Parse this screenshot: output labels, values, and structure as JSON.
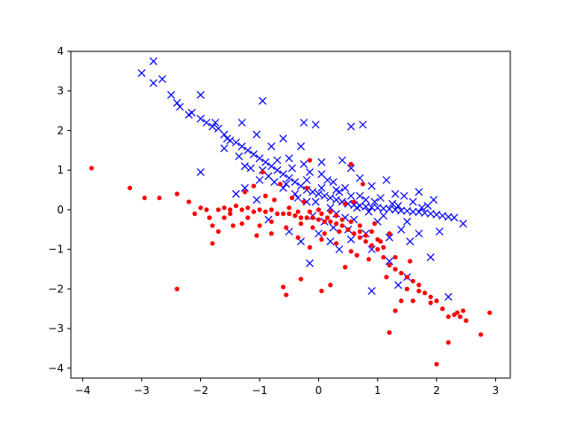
{
  "chart_data": {
    "type": "scatter",
    "title": "",
    "xlabel": "",
    "ylabel": "",
    "xlim": [
      -4.2,
      3.25
    ],
    "ylim": [
      -4.25,
      4.0
    ],
    "xticks": [
      -4,
      -3,
      -2,
      -1,
      0,
      1,
      2,
      3
    ],
    "yticks": [
      -4,
      -3,
      -2,
      -1,
      0,
      1,
      2,
      3,
      4
    ],
    "grid": false,
    "legend": "none",
    "series": [
      {
        "marker": "x",
        "color": "#0000ff",
        "points": [
          [
            -2.8,
            3.75
          ],
          [
            -2.65,
            3.3
          ],
          [
            -3.0,
            3.45
          ],
          [
            -2.8,
            3.2
          ],
          [
            -2.5,
            2.9
          ],
          [
            -2.35,
            2.6
          ],
          [
            -2.2,
            2.4
          ],
          [
            -2.0,
            2.9
          ],
          [
            -2.0,
            2.3
          ],
          [
            -1.9,
            2.2
          ],
          [
            -1.8,
            2.1
          ],
          [
            -1.7,
            2.05
          ],
          [
            -1.6,
            1.9
          ],
          [
            -1.5,
            1.75
          ],
          [
            -1.4,
            1.7
          ],
          [
            -1.3,
            1.6
          ],
          [
            -1.2,
            1.5
          ],
          [
            -1.1,
            1.4
          ],
          [
            -1.0,
            1.3
          ],
          [
            -0.9,
            1.2
          ],
          [
            -0.8,
            1.1
          ],
          [
            -0.7,
            1.0
          ],
          [
            -0.6,
            0.9
          ],
          [
            -0.5,
            0.8
          ],
          [
            -0.4,
            0.7
          ],
          [
            -0.3,
            0.6
          ],
          [
            -0.2,
            0.5
          ],
          [
            -0.1,
            0.45
          ],
          [
            0.0,
            0.4
          ],
          [
            0.1,
            0.35
          ],
          [
            0.2,
            0.3
          ],
          [
            0.3,
            0.25
          ],
          [
            0.4,
            0.2
          ],
          [
            0.5,
            0.15
          ],
          [
            0.6,
            0.12
          ],
          [
            0.7,
            0.1
          ],
          [
            0.8,
            0.08
          ],
          [
            0.9,
            0.06
          ],
          [
            1.0,
            0.05
          ],
          [
            1.1,
            0.03
          ],
          [
            1.2,
            0.02
          ],
          [
            1.3,
            0.0
          ],
          [
            1.4,
            -0.02
          ],
          [
            1.5,
            -0.03
          ],
          [
            1.6,
            -0.05
          ],
          [
            1.7,
            -0.06
          ],
          [
            1.8,
            -0.08
          ],
          [
            1.9,
            -0.1
          ],
          [
            2.0,
            -0.12
          ],
          [
            2.1,
            -0.15
          ],
          [
            2.2,
            -0.18
          ],
          [
            2.45,
            -0.35
          ],
          [
            2.05,
            -0.55
          ],
          [
            2.2,
            -2.2
          ],
          [
            1.9,
            -1.2
          ],
          [
            1.5,
            -1.7
          ],
          [
            1.35,
            -1.9
          ],
          [
            1.4,
            -0.5
          ],
          [
            1.5,
            -0.3
          ],
          [
            1.3,
            0.4
          ],
          [
            1.15,
            0.75
          ],
          [
            0.9,
            0.6
          ],
          [
            0.7,
            0.8
          ],
          [
            0.55,
            1.05
          ],
          [
            0.55,
            2.1
          ],
          [
            0.75,
            2.15
          ],
          [
            -0.25,
            2.2
          ],
          [
            -0.05,
            2.15
          ],
          [
            -0.95,
            2.75
          ],
          [
            -1.3,
            2.2
          ],
          [
            -1.05,
            1.9
          ],
          [
            -0.6,
            1.8
          ],
          [
            -0.3,
            1.6
          ],
          [
            -0.5,
            1.3
          ],
          [
            -0.8,
            1.6
          ],
          [
            -0.4,
            0.4
          ],
          [
            -0.2,
            0.2
          ],
          [
            0.0,
            -0.6
          ],
          [
            0.2,
            -0.8
          ],
          [
            0.35,
            -1.0
          ],
          [
            0.5,
            -0.5
          ],
          [
            0.8,
            -0.6
          ],
          [
            0.9,
            -1.0
          ],
          [
            0.9,
            -2.05
          ],
          [
            -0.3,
            -0.8
          ],
          [
            -0.15,
            -1.35
          ],
          [
            0.1,
            -0.3
          ],
          [
            0.3,
            -0.1
          ],
          [
            0.6,
            -0.25
          ],
          [
            1.0,
            -0.3
          ],
          [
            1.7,
            -0.6
          ],
          [
            -2.0,
            0.95
          ],
          [
            -1.4,
            0.4
          ],
          [
            -1.0,
            0.75
          ],
          [
            -0.6,
            0.55
          ],
          [
            0.05,
            0.9
          ],
          [
            0.25,
            0.7
          ],
          [
            0.45,
            0.55
          ],
          [
            0.7,
            0.35
          ],
          [
            1.05,
            0.3
          ],
          [
            1.25,
            0.15
          ],
          [
            1.6,
            0.2
          ],
          [
            1.85,
            0.1
          ],
          [
            -0.15,
            0.95
          ],
          [
            0.15,
            0.75
          ],
          [
            0.35,
            0.45
          ],
          [
            0.45,
            -0.2
          ],
          [
            0.65,
            0.05
          ],
          [
            0.85,
            -0.05
          ],
          [
            1.1,
            -0.15
          ],
          [
            1.45,
            0.35
          ],
          [
            -1.15,
            1.05
          ],
          [
            -0.85,
            0.85
          ],
          [
            -0.55,
            0.65
          ],
          [
            -0.35,
            0.3
          ],
          [
            -0.05,
            0.2
          ],
          [
            0.2,
            0.05
          ],
          [
            -1.6,
            1.55
          ],
          [
            -1.35,
            1.35
          ],
          [
            -1.25,
            1.1
          ],
          [
            -0.95,
            1.0
          ],
          [
            -0.75,
            0.7
          ],
          [
            -1.75,
            2.2
          ],
          [
            -1.55,
            1.8
          ],
          [
            -2.15,
            2.45
          ],
          [
            -2.4,
            2.7
          ],
          [
            0.95,
            0.2
          ],
          [
            1.35,
            0.1
          ],
          [
            1.75,
            0.05
          ],
          [
            2.3,
            -0.2
          ],
          [
            -0.7,
            1.25
          ],
          [
            -0.45,
            1.05
          ],
          [
            -0.2,
            0.75
          ],
          [
            0.05,
            0.55
          ],
          [
            0.3,
            0.5
          ],
          [
            0.55,
            0.35
          ],
          [
            0.8,
            0.25
          ],
          [
            -0.1,
            -0.15
          ],
          [
            0.25,
            -0.45
          ],
          [
            0.55,
            -0.75
          ],
          [
            1.2,
            -0.7
          ],
          [
            1.55,
            -0.8
          ],
          [
            1.2,
            -1.3
          ],
          [
            -0.5,
            -0.55
          ],
          [
            -0.85,
            -0.25
          ],
          [
            -1.05,
            0.25
          ],
          [
            -1.25,
            0.55
          ],
          [
            0.4,
            1.25
          ],
          [
            0.05,
            1.2
          ],
          [
            -0.25,
            1.15
          ],
          [
            1.7,
            0.45
          ],
          [
            1.95,
            0.25
          ]
        ]
      },
      {
        "marker": "o",
        "color": "#ff0000",
        "points": [
          [
            -3.85,
            1.05
          ],
          [
            -3.2,
            0.55
          ],
          [
            -2.95,
            0.3
          ],
          [
            -2.7,
            0.3
          ],
          [
            -2.4,
            0.4
          ],
          [
            -2.4,
            -2.0
          ],
          [
            -2.2,
            0.2
          ],
          [
            -2.0,
            0.05
          ],
          [
            -1.9,
            0.0
          ],
          [
            -1.8,
            -0.4
          ],
          [
            -1.8,
            -0.85
          ],
          [
            -1.7,
            0.0
          ],
          [
            -1.6,
            0.05
          ],
          [
            -1.5,
            0.0
          ],
          [
            -1.4,
            0.1
          ],
          [
            -1.3,
            0.0
          ],
          [
            -1.2,
            0.05
          ],
          [
            -1.1,
            -0.05
          ],
          [
            -1.0,
            0.0
          ],
          [
            -0.9,
            -0.05
          ],
          [
            -0.8,
            0.0
          ],
          [
            -0.7,
            -0.1
          ],
          [
            -0.6,
            -0.1
          ],
          [
            -0.5,
            -0.1
          ],
          [
            -0.4,
            -0.15
          ],
          [
            -0.3,
            -0.2
          ],
          [
            -0.2,
            -0.2
          ],
          [
            -0.1,
            -0.2
          ],
          [
            0.0,
            -0.25
          ],
          [
            0.1,
            -0.3
          ],
          [
            0.2,
            -0.3
          ],
          [
            0.3,
            -0.35
          ],
          [
            0.4,
            -0.4
          ],
          [
            0.5,
            -0.5
          ],
          [
            0.6,
            -0.6
          ],
          [
            0.7,
            -0.7
          ],
          [
            0.8,
            -0.8
          ],
          [
            0.9,
            -0.9
          ],
          [
            1.0,
            -1.0
          ],
          [
            1.1,
            -1.2
          ],
          [
            1.2,
            -1.4
          ],
          [
            1.3,
            -1.5
          ],
          [
            1.4,
            -1.6
          ],
          [
            1.5,
            -1.7
          ],
          [
            1.6,
            -1.8
          ],
          [
            1.7,
            -1.9
          ],
          [
            1.8,
            -2.1
          ],
          [
            1.9,
            -2.2
          ],
          [
            2.0,
            -2.3
          ],
          [
            2.1,
            -2.5
          ],
          [
            2.2,
            -2.7
          ],
          [
            2.3,
            -2.65
          ],
          [
            2.4,
            -2.7
          ],
          [
            2.5,
            -2.8
          ],
          [
            2.35,
            -2.6
          ],
          [
            2.45,
            -2.55
          ],
          [
            2.75,
            -3.15
          ],
          [
            2.9,
            -2.6
          ],
          [
            2.0,
            -3.9
          ],
          [
            2.2,
            -3.35
          ],
          [
            1.2,
            -3.1
          ],
          [
            1.3,
            -2.55
          ],
          [
            1.4,
            -2.3
          ],
          [
            1.6,
            -2.3
          ],
          [
            1.9,
            -2.35
          ],
          [
            1.55,
            -1.3
          ],
          [
            1.3,
            -1.2
          ],
          [
            1.05,
            -0.8
          ],
          [
            0.9,
            -0.55
          ],
          [
            0.55,
            -1.05
          ],
          [
            0.3,
            -0.85
          ],
          [
            0.1,
            -0.6
          ],
          [
            -0.1,
            -0.45
          ],
          [
            -0.3,
            -0.35
          ],
          [
            -0.55,
            -0.45
          ],
          [
            -0.8,
            -0.3
          ],
          [
            -1.0,
            -0.4
          ],
          [
            -1.2,
            -0.2
          ],
          [
            -1.5,
            -0.1
          ],
          [
            -1.7,
            -0.55
          ],
          [
            -1.85,
            -0.2
          ],
          [
            -2.1,
            -0.1
          ],
          [
            -1.1,
            0.6
          ],
          [
            -0.95,
            0.95
          ],
          [
            -0.65,
            0.65
          ],
          [
            -0.45,
            0.3
          ],
          [
            -0.25,
            0.2
          ],
          [
            0.0,
            0.0
          ],
          [
            0.2,
            -0.05
          ],
          [
            0.45,
            0.15
          ],
          [
            0.6,
            0.2
          ],
          [
            -0.6,
            -1.95
          ],
          [
            -0.55,
            -2.15
          ],
          [
            -0.3,
            -1.75
          ],
          [
            0.05,
            -2.05
          ],
          [
            0.2,
            -1.9
          ],
          [
            0.45,
            -1.45
          ],
          [
            0.65,
            -1.15
          ],
          [
            0.85,
            -1.25
          ],
          [
            1.15,
            -1.7
          ],
          [
            1.5,
            -2.0
          ],
          [
            1.7,
            -2.05
          ],
          [
            -0.8,
            -0.6
          ],
          [
            -1.05,
            -0.65
          ],
          [
            -1.3,
            -0.35
          ],
          [
            -1.6,
            -0.2
          ],
          [
            -0.35,
            -0.7
          ],
          [
            -0.15,
            -0.95
          ],
          [
            0.05,
            -0.75
          ],
          [
            0.35,
            -0.55
          ],
          [
            0.7,
            -0.4
          ],
          [
            0.95,
            -0.35
          ],
          [
            1.2,
            -0.6
          ],
          [
            -0.9,
            0.35
          ],
          [
            -0.75,
            0.25
          ],
          [
            -0.5,
            0.05
          ],
          [
            -0.35,
            -0.05
          ],
          [
            -0.15,
            -0.05
          ],
          [
            0.05,
            -0.1
          ],
          [
            0.15,
            -0.2
          ],
          [
            0.3,
            -0.15
          ],
          [
            0.4,
            -0.25
          ],
          [
            0.55,
            -0.3
          ],
          [
            0.7,
            -0.55
          ],
          [
            0.8,
            -0.65
          ],
          [
            1.0,
            -0.75
          ],
          [
            1.1,
            -0.95
          ],
          [
            0.55,
            1.15
          ],
          [
            0.75,
            0.65
          ],
          [
            -0.15,
            1.25
          ],
          [
            -0.2,
            0.55
          ],
          [
            -1.25,
            0.45
          ],
          [
            -1.45,
            -0.4
          ]
        ]
      }
    ]
  }
}
